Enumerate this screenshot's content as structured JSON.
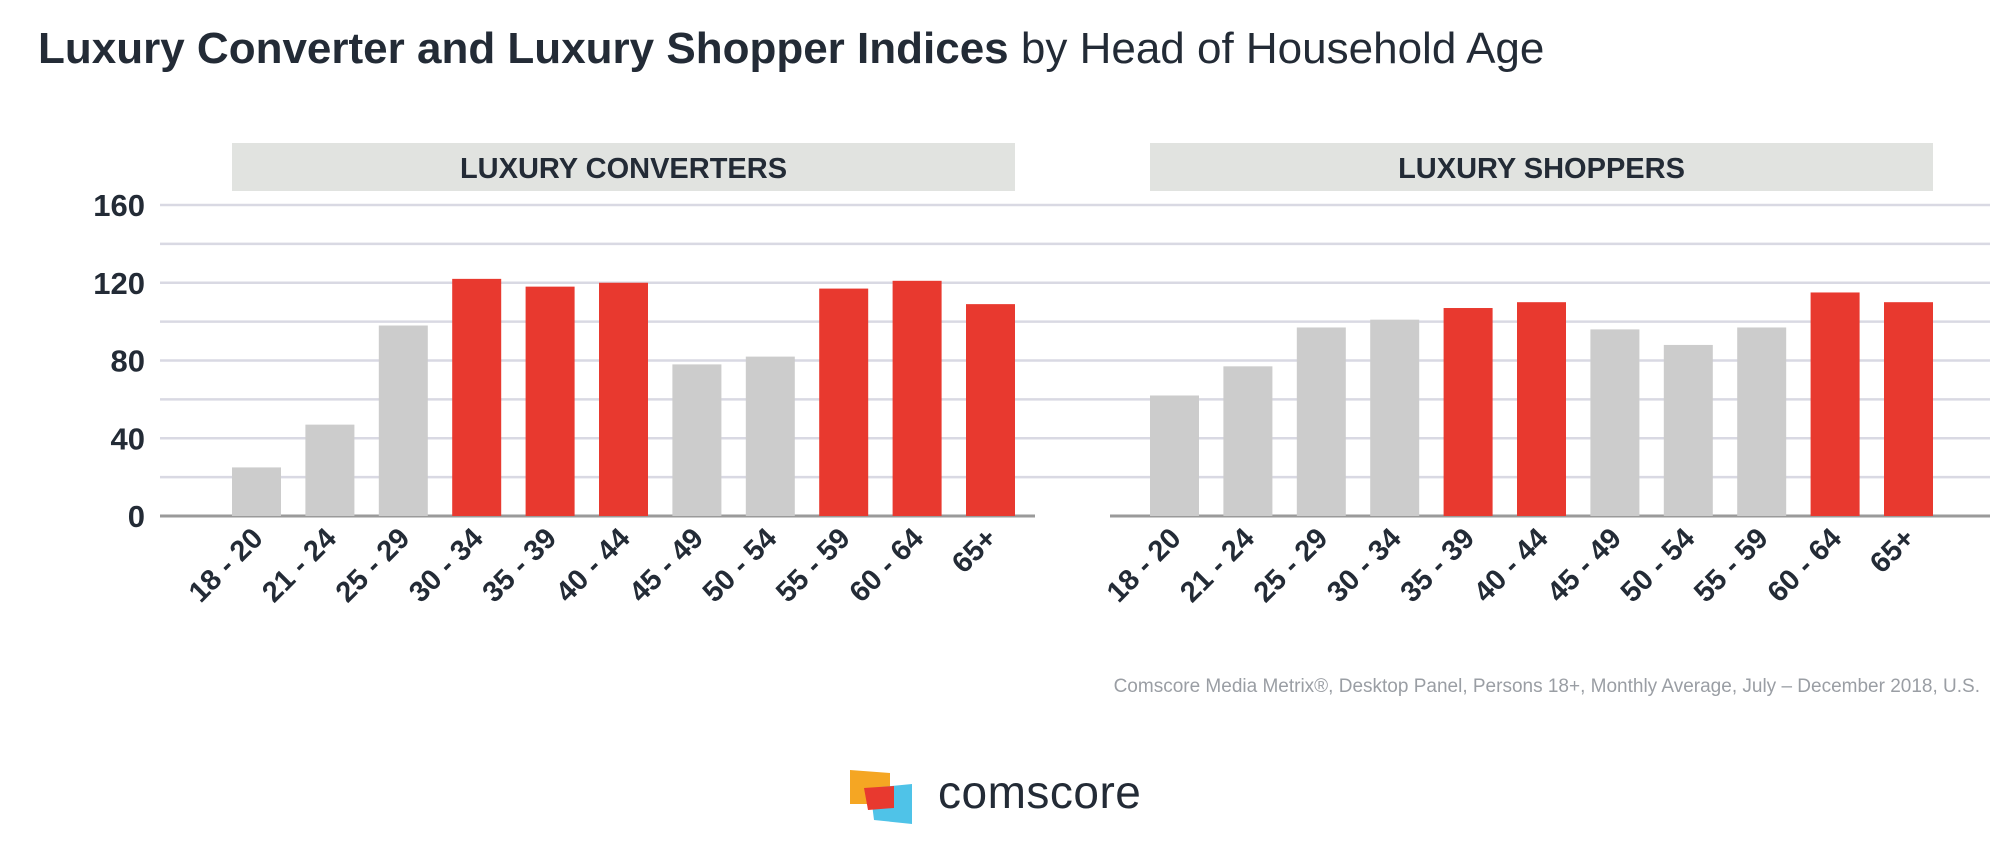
{
  "title": {
    "strong": "Luxury Converter and Luxury Shopper Indices",
    "light": " by Head of Household Age"
  },
  "source": "Comscore Media Metrix®, Desktop Panel, Persons 18+, Monthly Average, July – December 2018, U.S.",
  "logo": {
    "text": "comscore",
    "colors": [
      "#f5a623",
      "#e8392f",
      "#4fc3e8"
    ]
  },
  "colors": {
    "highlight": "#e8392f",
    "base": "#cccccc",
    "grid": "#d9d9e3",
    "header_bg": "#e1e3e0",
    "axis": "#9a9a9a"
  },
  "chart_data": {
    "type": "bar",
    "ylim": [
      0,
      160
    ],
    "yticks": [
      0,
      40,
      80,
      120,
      160
    ],
    "grid": true,
    "categories": [
      "18 - 20",
      "21 - 24",
      "25 - 29",
      "30 - 34",
      "35 - 39",
      "40 - 44",
      "45 - 49",
      "50 - 54",
      "55 - 59",
      "60 - 64",
      "65+"
    ],
    "panels": [
      {
        "name": "LUXURY CONVERTERS",
        "values": [
          25,
          47,
          98,
          122,
          118,
          120,
          78,
          82,
          117,
          121,
          109
        ],
        "highlighted": [
          false,
          false,
          false,
          true,
          true,
          true,
          false,
          false,
          true,
          true,
          true
        ]
      },
      {
        "name": "LUXURY SHOPPERS",
        "values": [
          62,
          77,
          97,
          101,
          107,
          110,
          96,
          88,
          97,
          115,
          110
        ],
        "highlighted": [
          false,
          false,
          false,
          false,
          true,
          true,
          false,
          false,
          false,
          true,
          true
        ]
      }
    ]
  }
}
